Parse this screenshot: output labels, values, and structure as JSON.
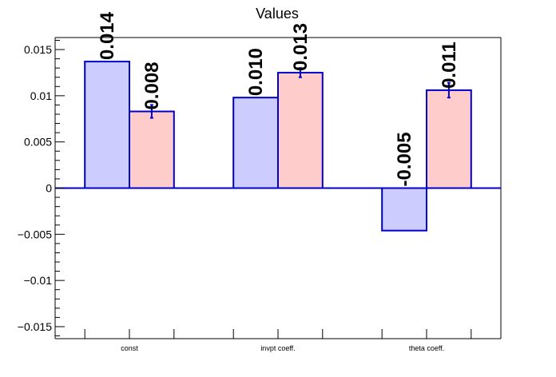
{
  "chart_data": {
    "type": "bar",
    "title": "Values",
    "xlabel": "",
    "ylabel": "",
    "categories": [
      "const",
      "invpt coeff.",
      "theta coeff."
    ],
    "ylim": [
      -0.0163,
      0.0163
    ],
    "yticks": [
      0.015,
      0.01,
      0.005,
      0,
      -0.005,
      -0.01,
      -0.015
    ],
    "ytick_labels": [
      "0.015",
      "0.01",
      "0.005",
      "0",
      "−0.005",
      "−0.01",
      "−0.015"
    ],
    "grid": false,
    "legend": "none",
    "series": [
      {
        "values": [
          0.0137,
          0.0098,
          -0.0046
        ],
        "errors": [
          0,
          0,
          0
        ],
        "labels": [
          "0.014",
          "0.010",
          "-0.005"
        ],
        "fill": "#ccccff",
        "stroke": "#0000cc"
      },
      {
        "values": [
          0.0083,
          0.0125,
          0.0106
        ],
        "errors": [
          0.0007,
          0.0005,
          0.0008
        ],
        "labels": [
          "0.008",
          "0.013",
          "0.011"
        ],
        "fill": "#ffcccc",
        "stroke": "#0000cc"
      }
    ],
    "axis_color": "#000000",
    "zero_line_color": "#0000cc"
  }
}
